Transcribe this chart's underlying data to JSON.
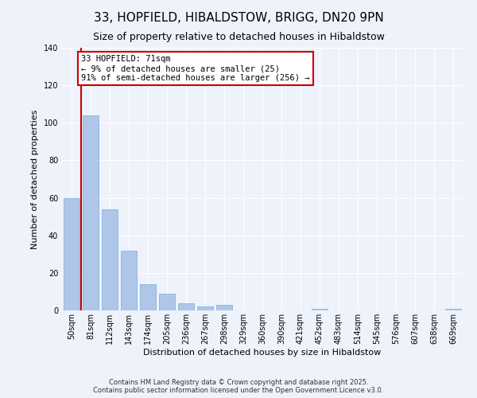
{
  "title": "33, HOPFIELD, HIBALDSTOW, BRIGG, DN20 9PN",
  "subtitle": "Size of property relative to detached houses in Hibaldstow",
  "xlabel": "Distribution of detached houses by size in Hibaldstow",
  "ylabel": "Number of detached properties",
  "bar_labels": [
    "50sqm",
    "81sqm",
    "112sqm",
    "143sqm",
    "174sqm",
    "205sqm",
    "236sqm",
    "267sqm",
    "298sqm",
    "329sqm",
    "360sqm",
    "390sqm",
    "421sqm",
    "452sqm",
    "483sqm",
    "514sqm",
    "545sqm",
    "576sqm",
    "607sqm",
    "638sqm",
    "669sqm"
  ],
  "bar_values": [
    60,
    104,
    54,
    32,
    14,
    9,
    4,
    2,
    3,
    0,
    0,
    0,
    0,
    1,
    0,
    0,
    0,
    0,
    0,
    0,
    1
  ],
  "bar_color": "#aec6e8",
  "bar_edge_color": "#7aadd4",
  "highlight_line_color": "#cc0000",
  "annotation_text": "33 HOPFIELD: 71sqm\n← 9% of detached houses are smaller (25)\n91% of semi-detached houses are larger (256) →",
  "annotation_box_color": "#ffffff",
  "annotation_border_color": "#cc0000",
  "ylim": [
    0,
    140
  ],
  "yticks": [
    0,
    20,
    40,
    60,
    80,
    100,
    120,
    140
  ],
  "background_color": "#eef2fb",
  "grid_color": "#ffffff",
  "footer_line1": "Contains HM Land Registry data © Crown copyright and database right 2025.",
  "footer_line2": "Contains public sector information licensed under the Open Government Licence v3.0.",
  "title_fontsize": 11,
  "subtitle_fontsize": 9,
  "axis_label_fontsize": 8,
  "tick_fontsize": 7,
  "bar_width": 0.85
}
